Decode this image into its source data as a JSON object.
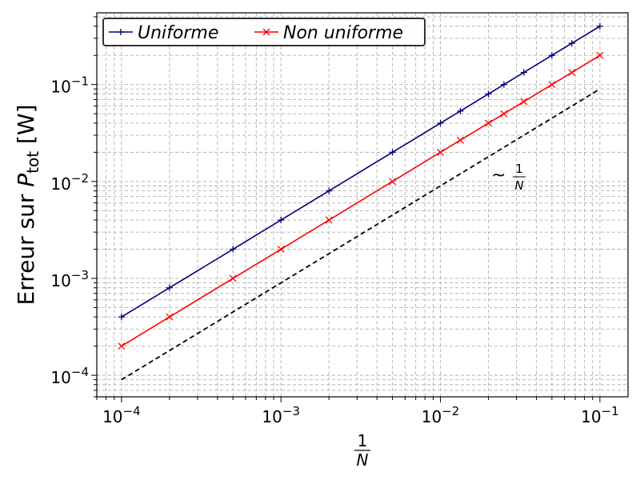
{
  "chart_data": {
    "type": "line",
    "x_scale": "log",
    "y_scale": "log",
    "xlim": [
      7e-05,
      0.15
    ],
    "ylim": [
      6e-05,
      0.55
    ],
    "grid": true,
    "legend_position": "top-left",
    "ylabel": {
      "main": "Erreur sur ",
      "symbol": "P",
      "subscript": "tot",
      "unit": " [W]"
    },
    "xlabel": {
      "numerator": "1",
      "denominator": "N"
    },
    "x_ticks": [
      {
        "value": 0.0001,
        "base": "10",
        "exp": "−4"
      },
      {
        "value": 0.001,
        "base": "10",
        "exp": "−3"
      },
      {
        "value": 0.01,
        "base": "10",
        "exp": "−2"
      },
      {
        "value": 0.1,
        "base": "10",
        "exp": "−1"
      }
    ],
    "y_ticks": [
      {
        "value": 0.0001,
        "base": "10",
        "exp": "−4"
      },
      {
        "value": 0.001,
        "base": "10",
        "exp": "−3"
      },
      {
        "value": 0.01,
        "base": "10",
        "exp": "−2"
      },
      {
        "value": 0.1,
        "base": "10",
        "exp": "−1"
      }
    ],
    "series": [
      {
        "name": "Uniforme",
        "color": "#000080",
        "marker": "plus",
        "x": [
          0.0001,
          0.0002,
          0.0005,
          0.001,
          0.002,
          0.005,
          0.01,
          0.01333,
          0.02,
          0.025,
          0.03333,
          0.05,
          0.06667,
          0.1
        ],
        "y": [
          0.0004,
          0.0008,
          0.002,
          0.004,
          0.008,
          0.02,
          0.04,
          0.0533,
          0.08,
          0.1,
          0.1333,
          0.2,
          0.2667,
          0.4
        ]
      },
      {
        "name": "Non uniforme",
        "color": "#ff0000",
        "marker": "x",
        "x": [
          0.0001,
          0.0002,
          0.0005,
          0.001,
          0.002,
          0.005,
          0.01,
          0.01333,
          0.02,
          0.025,
          0.03333,
          0.05,
          0.06667,
          0.1
        ],
        "y": [
          0.0002,
          0.0004,
          0.001,
          0.002,
          0.004,
          0.01,
          0.02,
          0.0267,
          0.04,
          0.05,
          0.0667,
          0.1,
          0.1333,
          0.2
        ]
      }
    ],
    "reference_line": {
      "color": "#000000",
      "style": "dashed",
      "x": [
        0.0001,
        0.1
      ],
      "y": [
        9e-05,
        0.09
      ]
    },
    "annotation": {
      "text": "~",
      "numerator": "1",
      "denominator": "N",
      "x": 0.02,
      "y": 0.011
    }
  }
}
